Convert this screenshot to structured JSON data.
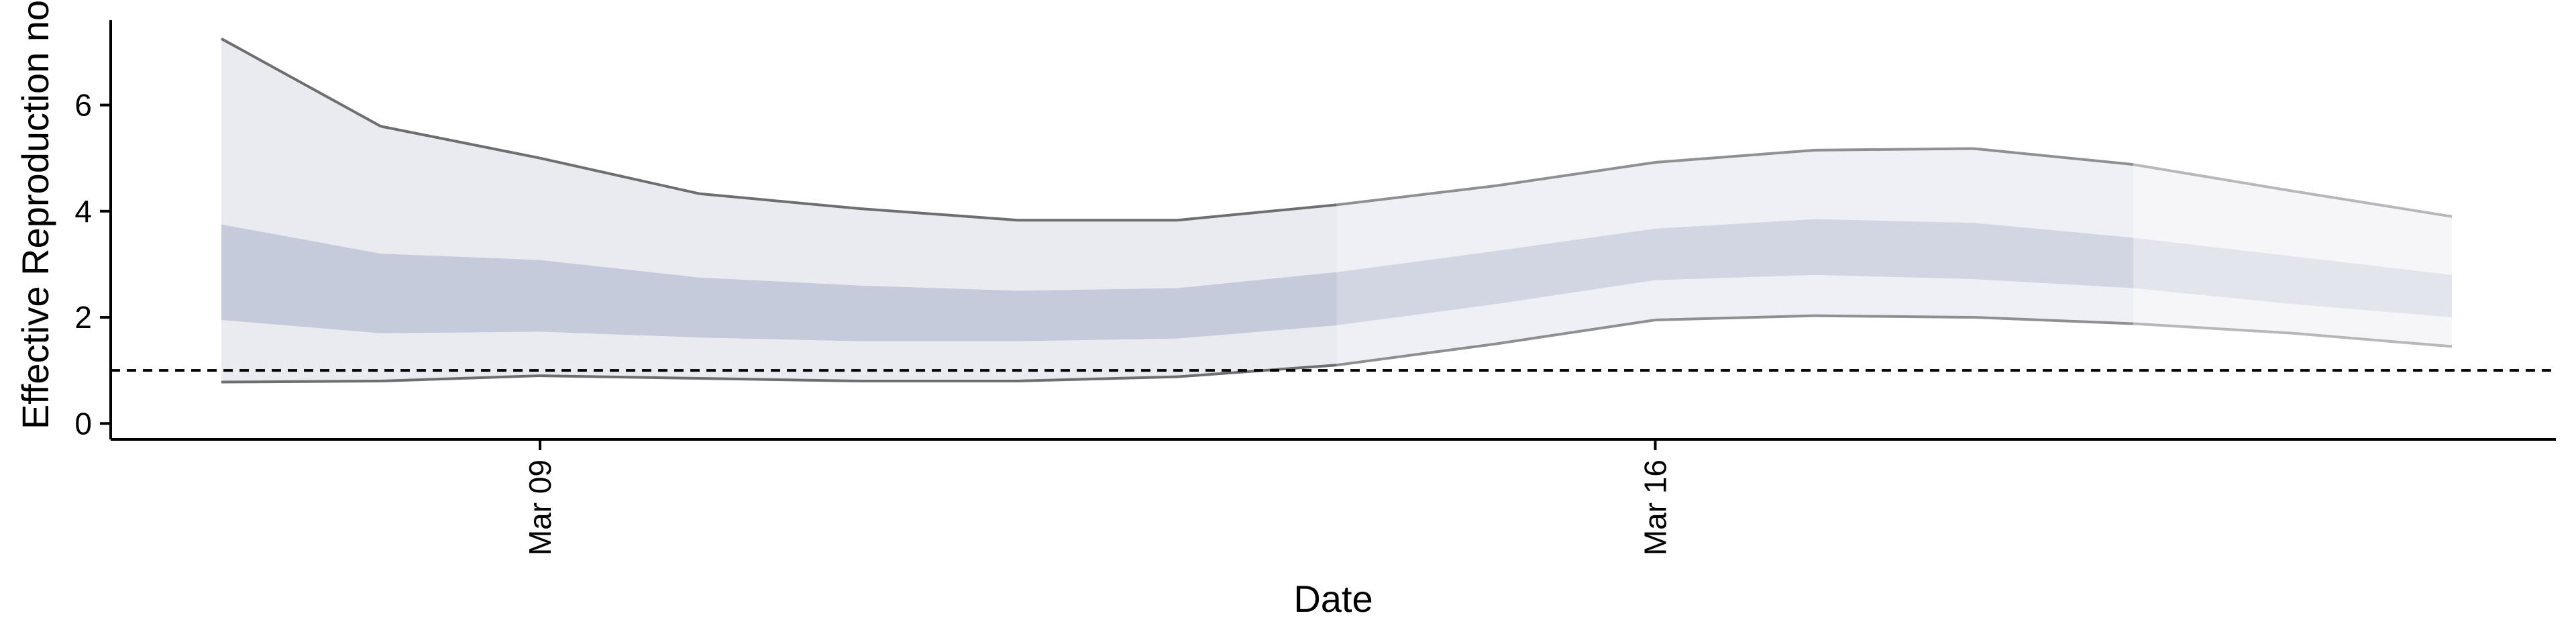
{
  "chart_data": {
    "type": "area",
    "xlabel": "Date",
    "ylabel": "Effective Reproduction no",
    "x_dates": [
      "Mar 07",
      "Mar 08",
      "Mar 09",
      "Mar 10",
      "Mar 11",
      "Mar 12",
      "Mar 13",
      "Mar 14",
      "Mar 15",
      "Mar 16",
      "Mar 17",
      "Mar 18",
      "Mar 19",
      "Mar 20",
      "Mar 21"
    ],
    "x_tick_labels": [
      "Mar 09",
      "Mar 16"
    ],
    "x_tick_dates": [
      "Mar 09",
      "Mar 16"
    ],
    "y_ticks": [
      0,
      2,
      4,
      6
    ],
    "ylim": [
      -0.3,
      7.6
    ],
    "reference_line": {
      "y": 1,
      "style": "dashed"
    },
    "series": [
      {
        "outer_upper": 7.25,
        "outer_lower": 0.78,
        "inner_upper": 3.75,
        "inner_lower": 1.95,
        "estimate_type": "estimate"
      },
      {
        "outer_upper": 5.6,
        "outer_lower": 0.8,
        "inner_upper": 3.2,
        "inner_lower": 1.7,
        "estimate_type": "estimate"
      },
      {
        "outer_upper": 5.0,
        "outer_lower": 0.9,
        "inner_upper": 3.08,
        "inner_lower": 1.73,
        "estimate_type": "estimate"
      },
      {
        "outer_upper": 4.33,
        "outer_lower": 0.85,
        "inner_upper": 2.75,
        "inner_lower": 1.62,
        "estimate_type": "estimate"
      },
      {
        "outer_upper": 4.05,
        "outer_lower": 0.8,
        "inner_upper": 2.6,
        "inner_lower": 1.55,
        "estimate_type": "estimate"
      },
      {
        "outer_upper": 3.83,
        "outer_lower": 0.8,
        "inner_upper": 2.5,
        "inner_lower": 1.55,
        "estimate_type": "estimate"
      },
      {
        "outer_upper": 3.83,
        "outer_lower": 0.88,
        "inner_upper": 2.55,
        "inner_lower": 1.6,
        "estimate_type": "estimate"
      },
      {
        "outer_upper": 4.12,
        "outer_lower": 1.1,
        "inner_upper": 2.85,
        "inner_lower": 1.85,
        "estimate_type": "estimate based on partial data"
      },
      {
        "outer_upper": 4.48,
        "outer_lower": 1.5,
        "inner_upper": 3.25,
        "inner_lower": 2.25,
        "estimate_type": "estimate based on partial data"
      },
      {
        "outer_upper": 4.92,
        "outer_lower": 1.95,
        "inner_upper": 3.67,
        "inner_lower": 2.7,
        "estimate_type": "estimate based on partial data"
      },
      {
        "outer_upper": 5.15,
        "outer_lower": 2.03,
        "inner_upper": 3.85,
        "inner_lower": 2.8,
        "estimate_type": "estimate based on partial data"
      },
      {
        "outer_upper": 5.18,
        "outer_lower": 2.0,
        "inner_upper": 3.78,
        "inner_lower": 2.72,
        "estimate_type": "estimate based on partial data"
      },
      {
        "outer_upper": 4.88,
        "outer_lower": 1.88,
        "inner_upper": 3.5,
        "inner_lower": 2.55,
        "estimate_type": "forecast"
      },
      {
        "outer_upper": 4.38,
        "outer_lower": 1.7,
        "inner_upper": 3.15,
        "inner_lower": 2.25,
        "estimate_type": "forecast"
      },
      {
        "outer_upper": 3.9,
        "outer_lower": 1.45,
        "inner_upper": 2.8,
        "inner_lower": 2.0,
        "estimate_type": "forecast"
      }
    ],
    "colors": {
      "outer_band": "#dcdee8",
      "inner_band": "#9aa3bf",
      "outline": "#6e6e6e",
      "axis": "#000000"
    },
    "grid": false,
    "legend": "none"
  }
}
